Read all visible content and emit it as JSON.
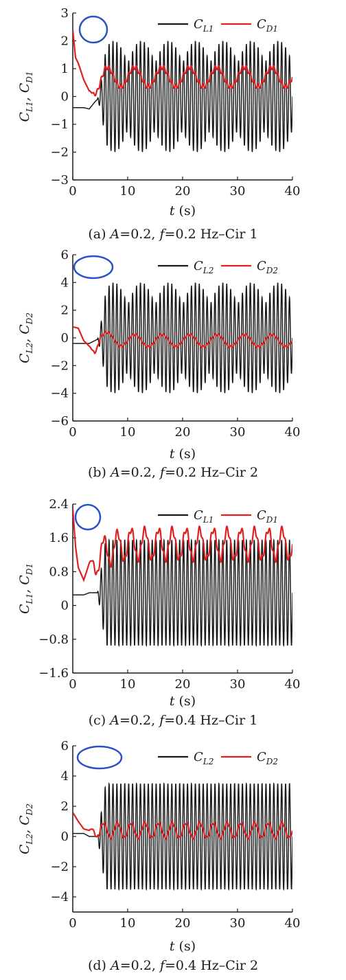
{
  "chart_data": [
    {
      "type": "line",
      "panel": "a",
      "caption": "(a)  A=0.2,  f=0.2 Hz–Cir 1",
      "xlabel": "t (s)",
      "ylabel": "C_{L1}, C_{D1}",
      "xlim": [
        0,
        40
      ],
      "ylim": [
        -3,
        3
      ],
      "x_ticks": [
        0,
        10,
        20,
        30,
        40
      ],
      "y_ticks": [
        -3,
        -2,
        -1,
        0,
        1,
        2,
        3
      ],
      "x_tick_labels": [
        "0",
        "10",
        "20",
        "30",
        "40"
      ],
      "y_tick_labels": [
        "−3",
        "−2",
        "−1",
        "0",
        "1",
        "2",
        "3"
      ],
      "legend_position": "top-right",
      "marker": "blue-ellipse",
      "series": [
        {
          "name": "C_L1",
          "label": "C",
          "sub": "L1",
          "color": "#1a1a1a",
          "x": [
            0,
            2,
            3,
            4,
            5,
            6,
            10,
            15,
            20,
            25,
            30,
            35,
            40
          ],
          "y": [
            -0.4,
            -0.4,
            -0.45,
            -0.2,
            0,
            0,
            0,
            0,
            0,
            0,
            0,
            0,
            0
          ],
          "oscillation_amplitude": 2.0,
          "oscillation_frequency_hz": 1.4,
          "beat_period_s": 5.0
        },
        {
          "name": "C_D1",
          "label": "C",
          "sub": "D1",
          "color": "#e02020",
          "x": [
            0,
            0.5,
            1,
            2,
            3,
            4,
            6,
            10,
            20,
            30,
            40
          ],
          "y": [
            2.4,
            1.4,
            1.2,
            0.6,
            0.2,
            0.3,
            0.7,
            0.7,
            0.7,
            0.7,
            0.7
          ],
          "oscillation_amplitude": 0.35,
          "oscillation_frequency_hz": 0.2
        }
      ]
    },
    {
      "type": "line",
      "panel": "b",
      "caption": "(b)  A=0.2,  f=0.2 Hz–Cir 2",
      "xlabel": "t (s)",
      "ylabel": "C_{L2}, C_{D2}",
      "xlim": [
        0,
        40
      ],
      "ylim": [
        -6,
        6
      ],
      "x_ticks": [
        0,
        10,
        20,
        30,
        40
      ],
      "y_ticks": [
        -6,
        -4,
        -2,
        0,
        2,
        4,
        6
      ],
      "x_tick_labels": [
        "0",
        "10",
        "20",
        "30",
        "40"
      ],
      "y_tick_labels": [
        "−6",
        "−4",
        "−2",
        "0",
        "2",
        "4",
        "6"
      ],
      "legend_position": "top-right",
      "marker": "blue-ellipse",
      "series": [
        {
          "name": "C_L2",
          "label": "C",
          "sub": "L2",
          "color": "#1a1a1a",
          "x": [
            0,
            3,
            4,
            5,
            10,
            20,
            30,
            40
          ],
          "y": [
            -0.4,
            -0.4,
            -0.2,
            0,
            0,
            0,
            0,
            0
          ],
          "oscillation_amplitude": 4.0,
          "oscillation_frequency_hz": 1.4,
          "beat_period_s": 5.0
        },
        {
          "name": "C_D2",
          "label": "C",
          "sub": "D2",
          "color": "#e02020",
          "x": [
            0,
            1,
            2,
            3,
            4,
            5,
            10,
            20,
            30,
            40
          ],
          "y": [
            0.8,
            0.7,
            -0.2,
            -0.6,
            -0.8,
            0,
            -0.2,
            -0.2,
            -0.2,
            -0.2
          ],
          "oscillation_amplitude": 0.45,
          "oscillation_frequency_hz": 0.2
        }
      ]
    },
    {
      "type": "line",
      "panel": "c",
      "caption": "(c)  A=0.2,  f=0.4 Hz–Cir 1",
      "xlabel": "t (s)",
      "ylabel": "C_{L1}, C_{D1}",
      "xlim": [
        0,
        40
      ],
      "ylim": [
        -1.6,
        2.4
      ],
      "x_ticks": [
        0,
        10,
        20,
        30,
        40
      ],
      "y_ticks": [
        -1.6,
        -0.8,
        0,
        0.8,
        1.6,
        2.4
      ],
      "x_tick_labels": [
        "0",
        "10",
        "20",
        "30",
        "40"
      ],
      "y_tick_labels": [
        "−1.6",
        "−0.8",
        "0",
        "0.8",
        "1.6",
        "2.4"
      ],
      "legend_position": "top-right",
      "marker": "blue-ellipse",
      "series": [
        {
          "name": "C_L1",
          "label": "C",
          "sub": "L1",
          "color": "#1a1a1a",
          "x": [
            0,
            2,
            3,
            4,
            5,
            7,
            10,
            20,
            30,
            40
          ],
          "y": [
            0.25,
            0.25,
            0.3,
            0.3,
            0.3,
            0.3,
            0.3,
            0.3,
            0.3,
            0.3
          ],
          "oscillation_amplitude": 1.25,
          "oscillation_frequency_hz": 1.4
        },
        {
          "name": "C_D1",
          "label": "C",
          "sub": "D1",
          "color": "#e02020",
          "x": [
            0,
            0.5,
            1,
            2,
            3,
            4,
            6,
            10,
            20,
            30,
            40
          ],
          "y": [
            2.3,
            1.4,
            0.9,
            0.6,
            1.0,
            1.0,
            1.3,
            1.45,
            1.45,
            1.45,
            1.45
          ],
          "oscillation_amplitude": 0.35,
          "oscillation_frequency_hz": 0.4
        }
      ]
    },
    {
      "type": "line",
      "panel": "d",
      "caption": "(d)  A=0.2,  f=0.4 Hz–Cir 2",
      "xlabel": "t (s)",
      "ylabel": "C_{L2}, C_{D2}",
      "xlim": [
        0,
        40
      ],
      "ylim": [
        -5,
        6
      ],
      "x_ticks": [
        0,
        10,
        20,
        30,
        40
      ],
      "y_ticks": [
        -4,
        -2,
        0,
        2,
        4,
        6
      ],
      "x_tick_labels": [
        "0",
        "10",
        "20",
        "30",
        "40"
      ],
      "y_tick_labels": [
        "−4",
        "−2",
        "0",
        "2",
        "4",
        "6"
      ],
      "legend_position": "top-right",
      "marker": "blue-ellipse",
      "series": [
        {
          "name": "C_L2",
          "label": "C",
          "sub": "L2",
          "color": "#1a1a1a",
          "x": [
            0,
            2,
            3,
            10,
            20,
            30,
            40
          ],
          "y": [
            0.2,
            0.2,
            0,
            0,
            0,
            0,
            0
          ],
          "oscillation_amplitude": 3.5,
          "oscillation_frequency_hz": 1.4
        },
        {
          "name": "C_D2",
          "label": "C",
          "sub": "D2",
          "color": "#e02020",
          "x": [
            0,
            1,
            2,
            3,
            10,
            20,
            30,
            40
          ],
          "y": [
            1.6,
            1.0,
            0.5,
            0.4,
            0.4,
            0.4,
            0.4,
            0.4
          ],
          "oscillation_amplitude": 0.5,
          "oscillation_frequency_hz": 0.4
        }
      ]
    }
  ]
}
